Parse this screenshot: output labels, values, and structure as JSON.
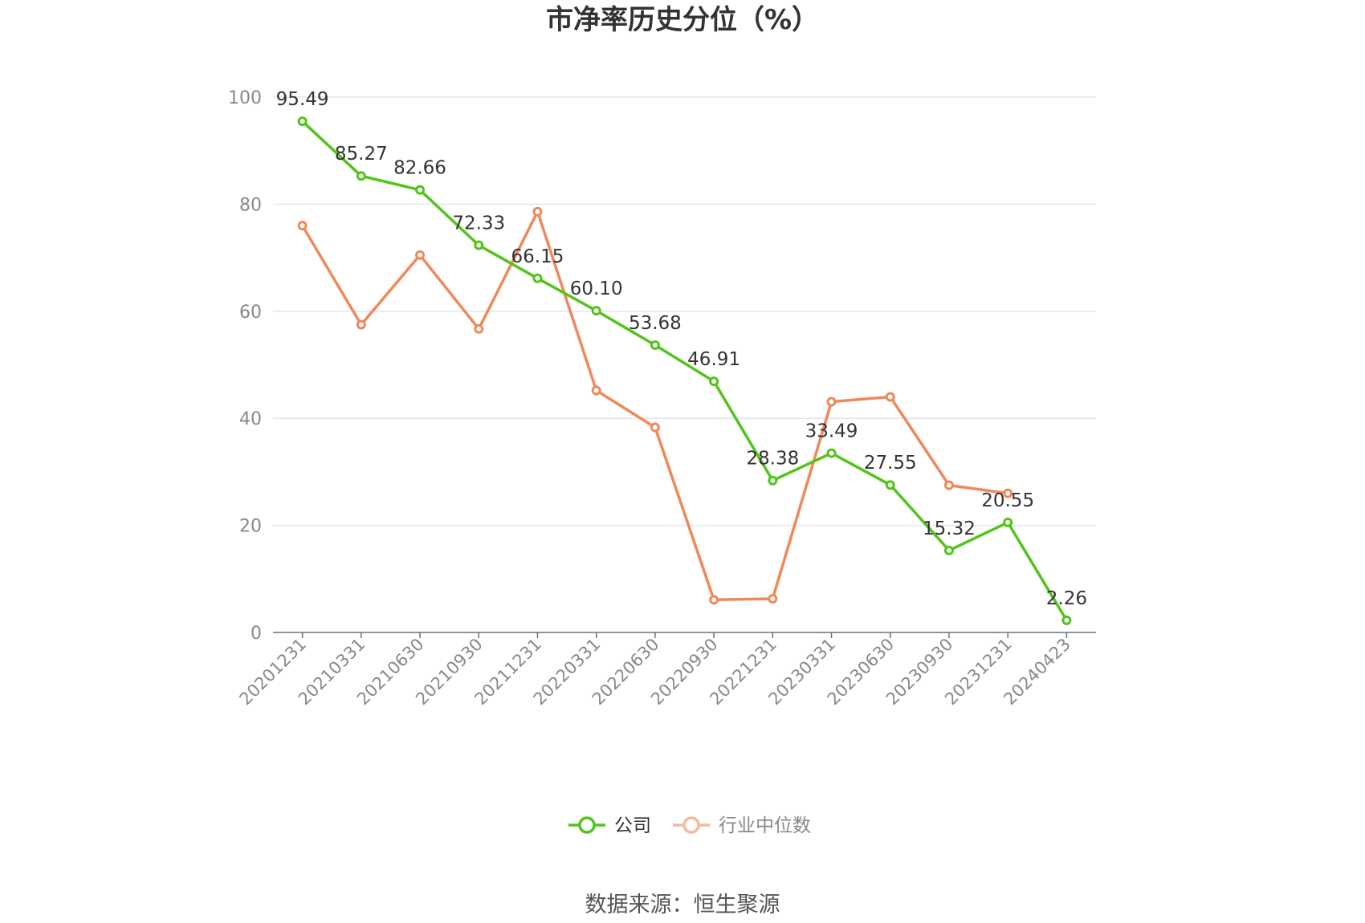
{
  "chart_data": {
    "type": "line",
    "title": "市净率历史分位（%）",
    "x": [
      "20201231",
      "20210331",
      "20210630",
      "20210930",
      "20211231",
      "20220331",
      "20220630",
      "20220930",
      "20221231",
      "20230331",
      "20230630",
      "20230930",
      "20231231",
      "20240423"
    ],
    "y_ticks": [
      "0",
      "20",
      "40",
      "60",
      "80",
      "100"
    ],
    "ylim": [
      0,
      100
    ],
    "grid": true,
    "legend_position": "bottom",
    "series": [
      {
        "name": "公司",
        "color": "#52c41a",
        "values": [
          95.49,
          85.27,
          82.66,
          72.33,
          66.15,
          60.1,
          53.68,
          46.91,
          28.38,
          33.49,
          27.55,
          15.32,
          20.55,
          2.26
        ],
        "labels": [
          "95.49",
          "85.27",
          "82.66",
          "72.33",
          "66.15",
          "60.10",
          "53.68",
          "46.91",
          "28.38",
          "33.49",
          "27.55",
          "15.32",
          "20.55",
          "2.26"
        ]
      },
      {
        "name": "行业中位数",
        "color": "#f0885a",
        "values": [
          76.0,
          57.5,
          70.5,
          56.7,
          78.6,
          45.2,
          38.3,
          6.1,
          6.3,
          43.1,
          44.0,
          27.5,
          26.0,
          null
        ]
      }
    ],
    "source": "数据来源：恒生聚源"
  }
}
